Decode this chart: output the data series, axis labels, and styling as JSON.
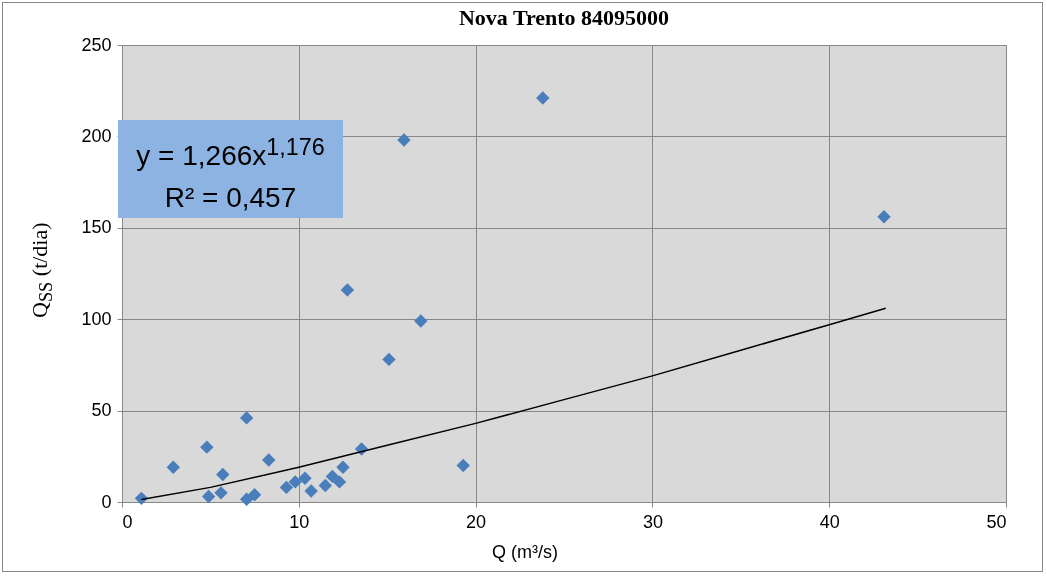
{
  "chart_data": {
    "type": "scatter",
    "title": "Nova Trento 84095000",
    "xlabel": "Q (m³/s)",
    "ylabel": "Q$_{SS}$ (t/dia)",
    "annotations": [
      "y = 1,266x$^{1,176}$",
      "R² = 0,457"
    ],
    "series": [
      {
        "color": "#4a7ebb",
        "marker": "diamond",
        "x": [
          1.1,
          2.9,
          4.8,
          7.05,
          8.3,
          5.7,
          5.6,
          4.9,
          7.05,
          7.5,
          9.3,
          9.8,
          10.35,
          10.7,
          11.5,
          11.9,
          12.3,
          12.5,
          13.55,
          12.75,
          16.9,
          15.1,
          19.3,
          15.95,
          23.8,
          43.1
        ],
        "values": [
          2,
          19,
          30,
          46,
          23,
          15,
          5,
          3,
          1.5,
          4,
          8,
          11,
          13,
          6,
          9,
          14,
          11,
          19,
          29,
          116,
          99,
          78,
          20,
          198,
          221,
          156
        ]
      },
      {
        "type": "line",
        "color": "#000000",
        "line_style": "solid",
        "marker": "none",
        "x": [
          1.1,
          5,
          10,
          15,
          20,
          25,
          30,
          35,
          40,
          43.2
        ],
        "values": [
          1.4,
          8,
          19,
          31,
          43,
          56,
          69,
          83,
          97,
          106
        ]
      }
    ],
    "xlim": [
      0,
      50
    ],
    "xticks": [
      0,
      10,
      20,
      30,
      40,
      50
    ],
    "ylim": [
      0,
      250
    ],
    "yticks": [
      0,
      50,
      100,
      150,
      200,
      250
    ],
    "grid": true
  }
}
